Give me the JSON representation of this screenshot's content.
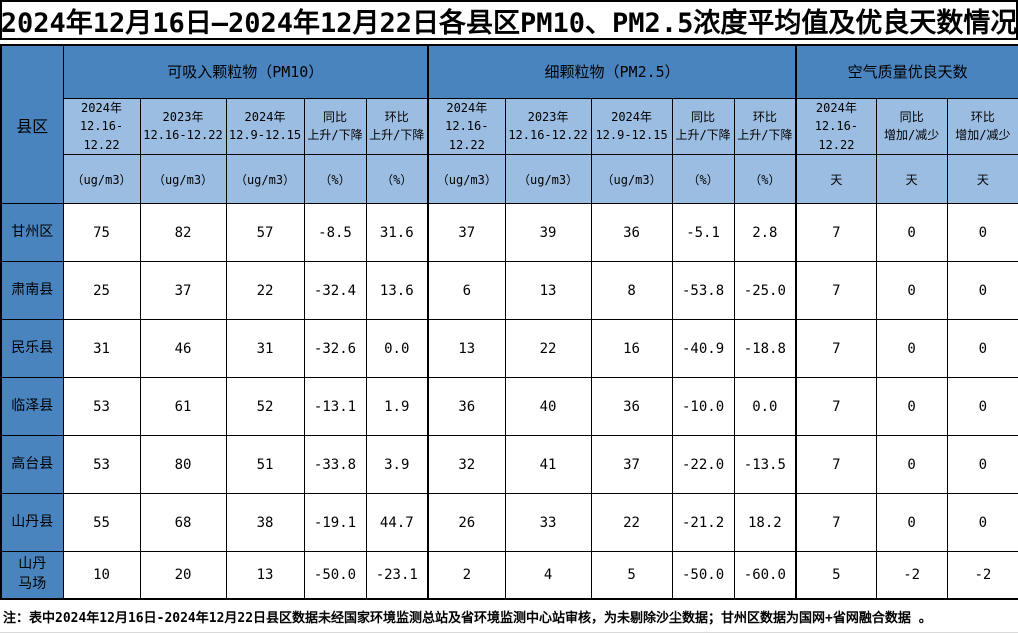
{
  "title": "2024年12月16日—2024年12月22日各县区PM10、PM2.5浓度平均值及优良天数情况",
  "note": "注：表中2024年12月16日-2024年12月22日县区数据未经国家环境监测总站及省环境监测中心站审核，为未剔除沙尘数据；甘州区数据为国网+省网融合数据 。",
  "colors": {
    "header_dark_blue": "#4a84bf",
    "header_light_blue": "#9cbde2",
    "grid": "#000000",
    "cell_bg": "#ffffff"
  },
  "table": {
    "corner_label": "县区",
    "groups": [
      {
        "label": "可吸入颗粒物（PM10）",
        "columns": [
          {
            "line1": "2024年",
            "line2": "12.16-12.22",
            "unit": "（ug/m3）"
          },
          {
            "line1": "2023年",
            "line2": "12.16-12.22",
            "unit": "（ug/m3）"
          },
          {
            "line1": "2024年",
            "line2": "12.9-12.15",
            "unit": "（ug/m3）"
          },
          {
            "line1": "同比",
            "line2": "上升/下降",
            "unit": "（%）"
          },
          {
            "line1": "环比",
            "line2": "上升/下降",
            "unit": "（%）"
          }
        ]
      },
      {
        "label": "细颗粒物（PM2.5）",
        "columns": [
          {
            "line1": "2024年",
            "line2": "12.16-12.22",
            "unit": "（ug/m3）"
          },
          {
            "line1": "2023年",
            "line2": "12.16-12.22",
            "unit": "（ug/m3）"
          },
          {
            "line1": "2024年",
            "line2": "12.9-12.15",
            "unit": "（ug/m3）"
          },
          {
            "line1": "同比",
            "line2": "上升/下降",
            "unit": "（%）"
          },
          {
            "line1": "环比",
            "line2": "上升/下降",
            "unit": "（%）"
          }
        ]
      },
      {
        "label": "空气质量优良天数",
        "columns": [
          {
            "line1": "2024年",
            "line2": "12.16-12.22",
            "unit": "天"
          },
          {
            "line1": "同比",
            "line2": "增加/减少",
            "unit": "天"
          },
          {
            "line1": "环比",
            "line2": "增加/减少",
            "unit": "天"
          }
        ]
      }
    ],
    "rows": [
      {
        "name": "甘州区",
        "values": [
          "75",
          "82",
          "57",
          "-8.5",
          "31.6",
          "37",
          "39",
          "36",
          "-5.1",
          "2.8",
          "7",
          "0",
          "0"
        ]
      },
      {
        "name": "肃南县",
        "values": [
          "25",
          "37",
          "22",
          "-32.4",
          "13.6",
          "6",
          "13",
          "8",
          "-53.8",
          "-25.0",
          "7",
          "0",
          "0"
        ]
      },
      {
        "name": "民乐县",
        "values": [
          "31",
          "46",
          "31",
          "-32.6",
          "0.0",
          "13",
          "22",
          "16",
          "-40.9",
          "-18.8",
          "7",
          "0",
          "0"
        ]
      },
      {
        "name": "临泽县",
        "values": [
          "53",
          "61",
          "52",
          "-13.1",
          "1.9",
          "36",
          "40",
          "36",
          "-10.0",
          "0.0",
          "7",
          "0",
          "0"
        ]
      },
      {
        "name": "高台县",
        "values": [
          "53",
          "80",
          "51",
          "-33.8",
          "3.9",
          "32",
          "41",
          "37",
          "-22.0",
          "-13.5",
          "7",
          "0",
          "0"
        ]
      },
      {
        "name": "山丹县",
        "values": [
          "55",
          "68",
          "38",
          "-19.1",
          "44.7",
          "26",
          "33",
          "22",
          "-21.2",
          "18.2",
          "7",
          "0",
          "0"
        ]
      },
      {
        "name": "山丹\n马场",
        "values": [
          "10",
          "20",
          "13",
          "-50.0",
          "-23.1",
          "2",
          "4",
          "5",
          "-50.0",
          "-60.0",
          "5",
          "-2",
          "-2"
        ]
      }
    ]
  }
}
